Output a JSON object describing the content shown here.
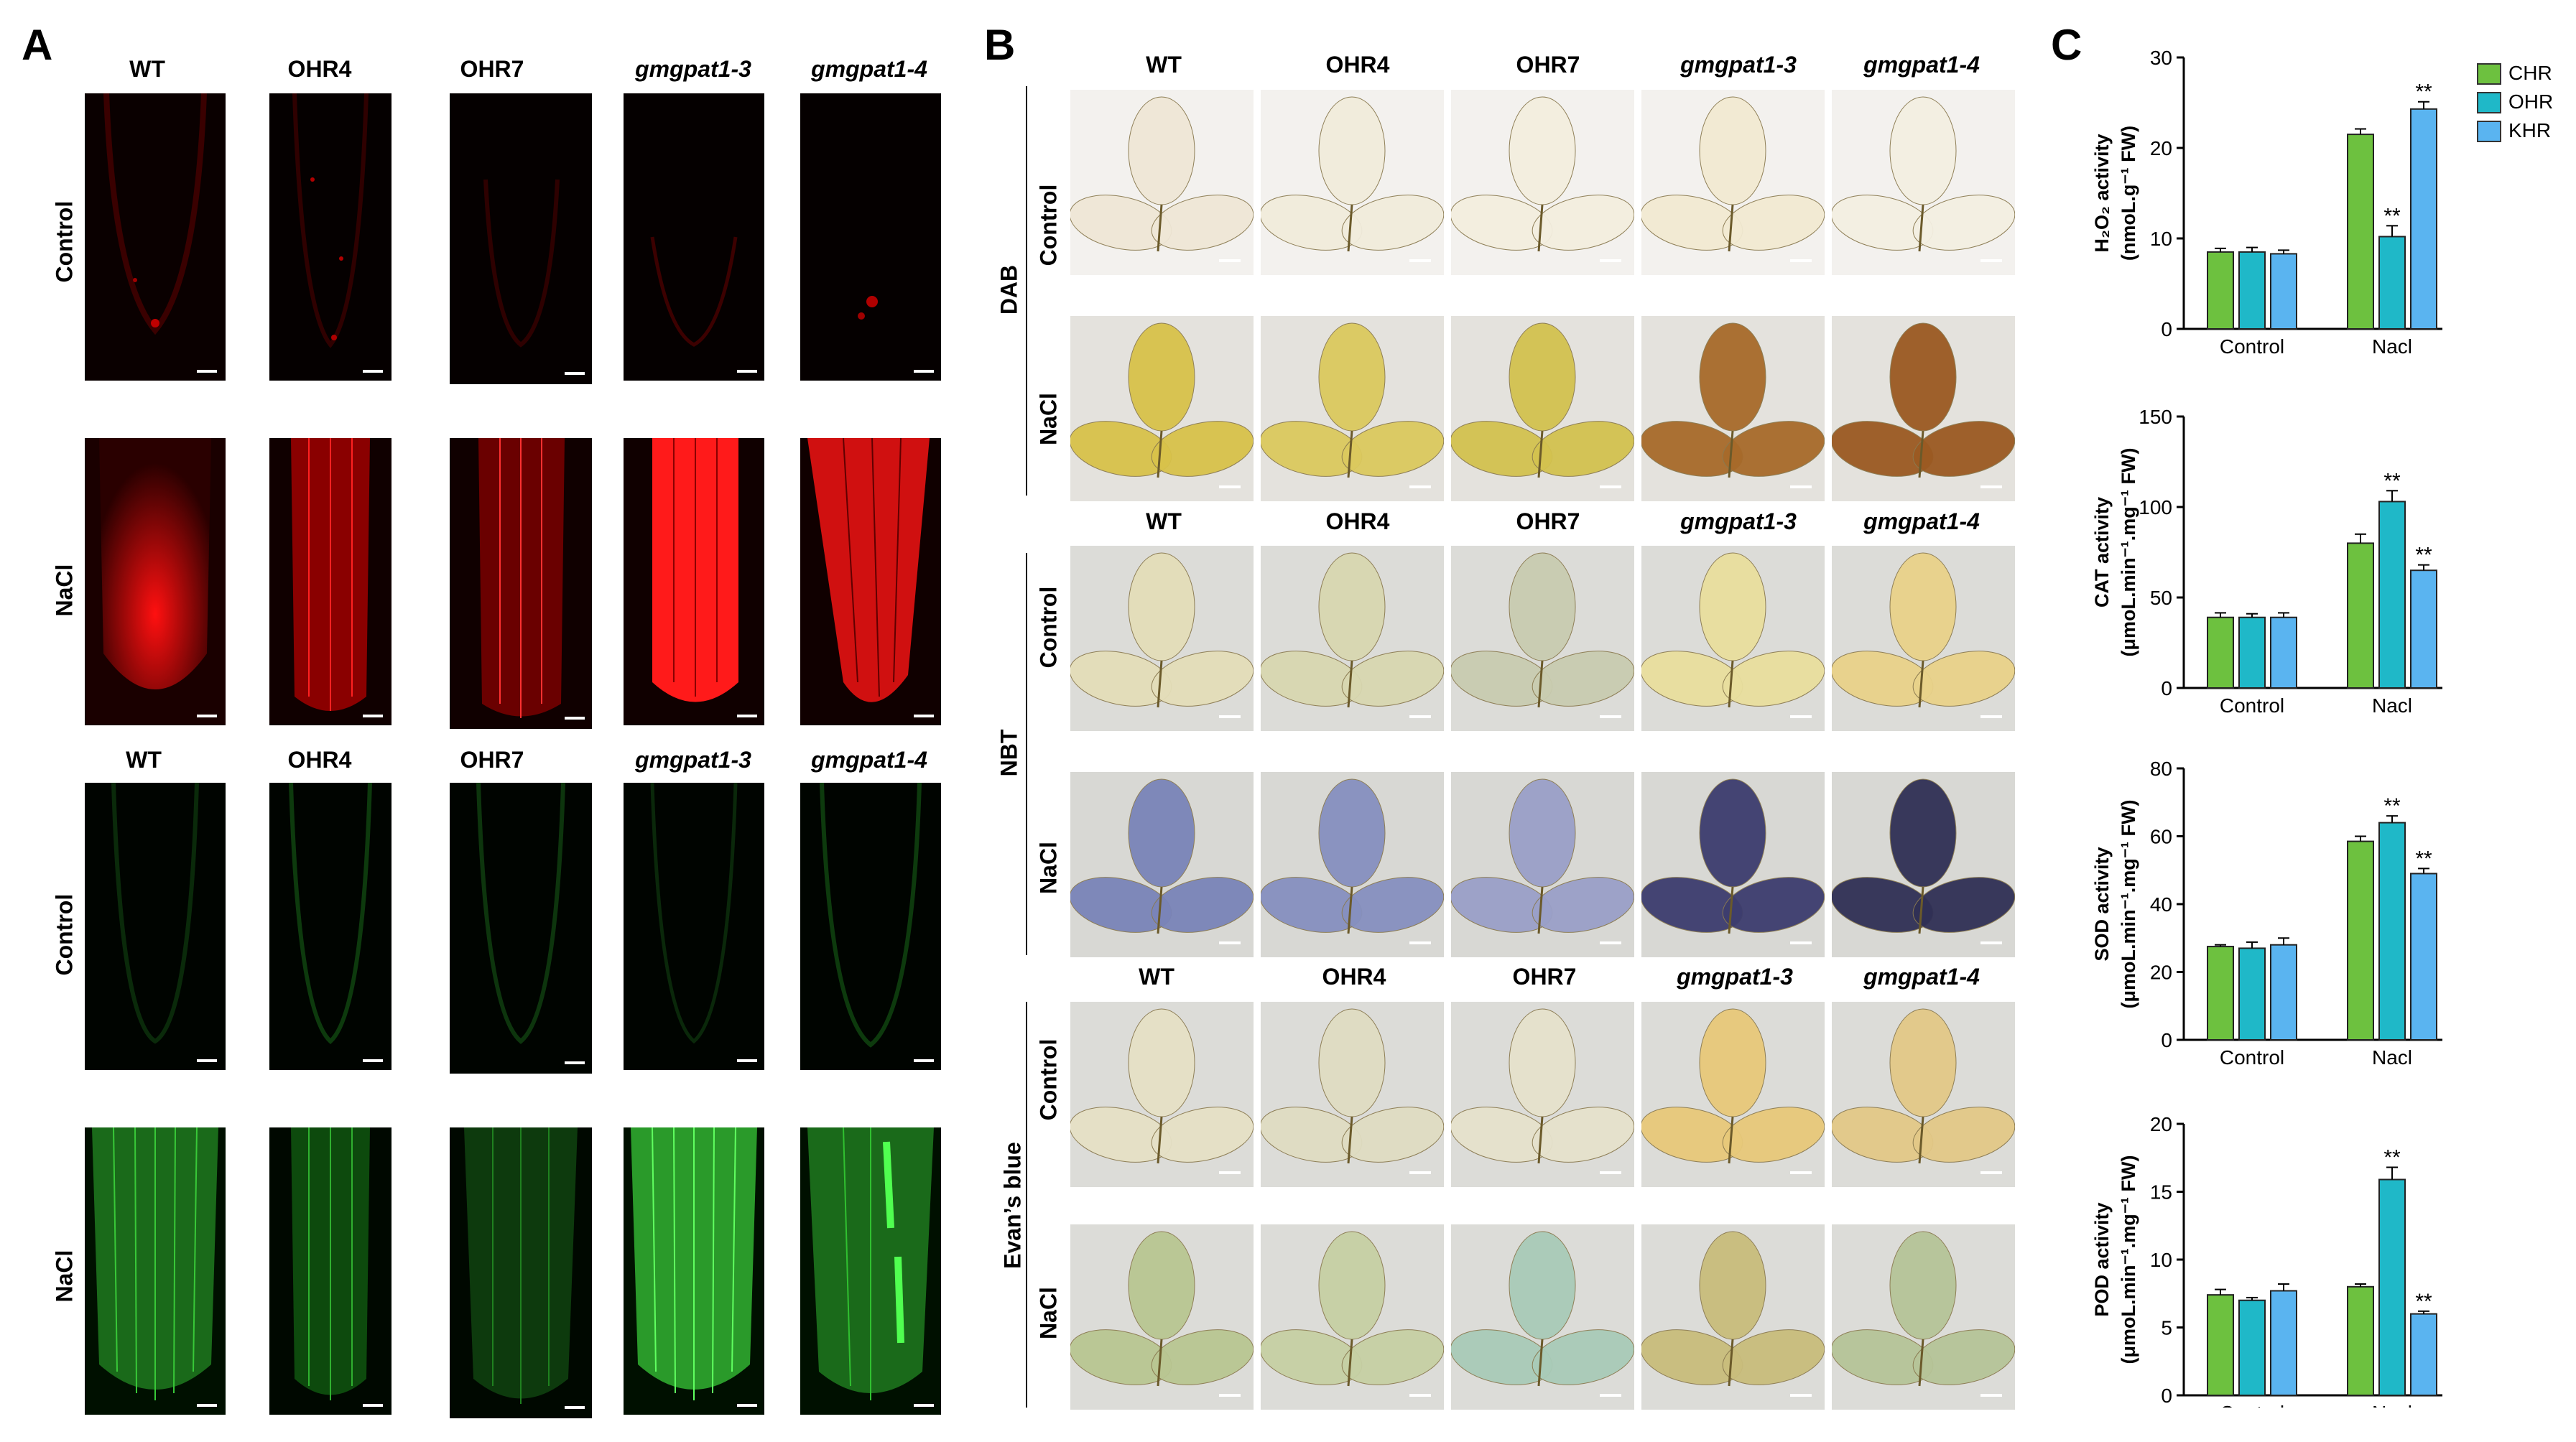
{
  "panels": {
    "a": "A",
    "b": "B",
    "c": "C"
  },
  "genotypes": [
    "WT",
    "OHR4",
    "OHR7",
    "gmgpat1-3",
    "gmgpat1-4"
  ],
  "panel_a": {
    "row_labels": [
      "Control",
      "NaCl",
      "Control",
      "NaCl"
    ]
  },
  "panel_b": {
    "stain_labels": [
      "DAB",
      "NBT",
      "Evan’s blue"
    ],
    "row_labels": [
      "Control",
      "NaCl"
    ]
  },
  "panel_c": {
    "legend": [
      "CHR",
      "OHR",
      "KHR"
    ],
    "colors": {
      "CHR": "#6dc13f",
      "OHR": "#1fb8c8",
      "KHR": "#5ab4f0"
    },
    "significance_mark": "**"
  },
  "chart_data": [
    {
      "type": "bar",
      "categories": [
        "Control",
        "Nacl"
      ],
      "series": [
        {
          "name": "CHR",
          "values": [
            8.5,
            21.5
          ],
          "errors": [
            0.4,
            0.6
          ]
        },
        {
          "name": "OHR",
          "values": [
            8.5,
            10.2
          ],
          "errors": [
            0.5,
            1.2
          ]
        },
        {
          "name": "KHR",
          "values": [
            8.3,
            24.3
          ],
          "errors": [
            0.4,
            0.8
          ]
        }
      ],
      "significant": [
        [
          false,
          false
        ],
        [
          false,
          true
        ],
        [
          false,
          true
        ]
      ],
      "ylabel_line1": "H₂O₂ activity",
      "ylabel_line2": "(nmoL.g⁻¹ FW)",
      "ylim": [
        0,
        30
      ],
      "yticks": [
        0,
        10,
        20,
        30
      ]
    },
    {
      "type": "bar",
      "categories": [
        "Control",
        "Nacl"
      ],
      "series": [
        {
          "name": "CHR",
          "values": [
            39,
            80
          ],
          "errors": [
            2.5,
            5
          ]
        },
        {
          "name": "OHR",
          "values": [
            39,
            103
          ],
          "errors": [
            2,
            6
          ]
        },
        {
          "name": "KHR",
          "values": [
            39,
            65
          ],
          "errors": [
            2.5,
            3
          ]
        }
      ],
      "significant": [
        [
          false,
          false
        ],
        [
          false,
          true
        ],
        [
          false,
          true
        ]
      ],
      "ylabel_line1": "CAT activity",
      "ylabel_line2": "(μmoL.min⁻¹.mg⁻¹ FW)",
      "ylim": [
        0,
        150
      ],
      "yticks": [
        0,
        50,
        100,
        150
      ]
    },
    {
      "type": "bar",
      "categories": [
        "Control",
        "Nacl"
      ],
      "series": [
        {
          "name": "CHR",
          "values": [
            27.5,
            58.5
          ],
          "errors": [
            0.5,
            1.5
          ]
        },
        {
          "name": "OHR",
          "values": [
            27,
            64
          ],
          "errors": [
            1.8,
            2
          ]
        },
        {
          "name": "KHR",
          "values": [
            28,
            49
          ],
          "errors": [
            2,
            1.5
          ]
        }
      ],
      "significant": [
        [
          false,
          false
        ],
        [
          false,
          true
        ],
        [
          false,
          true
        ]
      ],
      "ylabel_line1": "SOD activity",
      "ylabel_line2": "(μmoL.min⁻¹.mg⁻¹ FW)",
      "ylim": [
        0,
        80
      ],
      "yticks": [
        0,
        20,
        40,
        60,
        80
      ]
    },
    {
      "type": "bar",
      "categories": [
        "Control",
        "Nacl"
      ],
      "series": [
        {
          "name": "CHR",
          "values": [
            7.4,
            8.0
          ],
          "errors": [
            0.4,
            0.2
          ]
        },
        {
          "name": "OHR",
          "values": [
            7.0,
            15.9
          ],
          "errors": [
            0.2,
            0.9
          ]
        },
        {
          "name": "KHR",
          "values": [
            7.7,
            6.0
          ],
          "errors": [
            0.5,
            0.2
          ]
        }
      ],
      "significant": [
        [
          false,
          false
        ],
        [
          false,
          true
        ],
        [
          false,
          true
        ]
      ],
      "ylabel_line1": "POD activity",
      "ylabel_line2": "(μmoL.min⁻¹.mg⁻¹ FW)",
      "ylim": [
        0,
        20
      ],
      "yticks": [
        0,
        5,
        10,
        15,
        20
      ]
    }
  ]
}
